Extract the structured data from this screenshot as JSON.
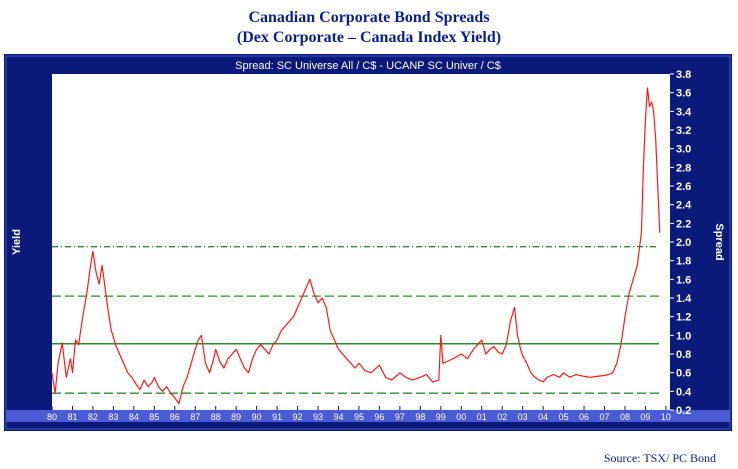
{
  "title_line1": "Canadian Corporate Bond Spreads",
  "title_line2": "(Dex Corporate – Canada Index Yield)",
  "source_note": "Source: TSX/ PC Bond",
  "chart_data": {
    "type": "line",
    "header": "Spread: SC Universe All / C$  -  UCANP SC Univer / C$",
    "ylabel_left": "Yield",
    "ylabel_right": "Spread",
    "x_tick_labels": [
      "80",
      "81",
      "82",
      "83",
      "84",
      "85",
      "86",
      "87",
      "88",
      "89",
      "90",
      "91",
      "92",
      "93",
      "94",
      "95",
      "96",
      "97",
      "98",
      "99",
      "00",
      "01",
      "02",
      "03",
      "04",
      "05",
      "06",
      "07",
      "08",
      "09",
      "10"
    ],
    "xlim": [
      1980,
      2010.2
    ],
    "y_ticks": [
      "3.8",
      "3.6",
      "3.4",
      "3.2",
      "3.0",
      "2.8",
      "2.6",
      "2.4",
      "2.2",
      "2.0",
      "1.8",
      "1.6",
      "1.4",
      "1.2",
      "1.0",
      "0.8",
      "0.6",
      "0.4",
      "0.2"
    ],
    "ylim": [
      0.2,
      3.8
    ],
    "reference_lines": [
      {
        "value": 1.95,
        "style": "dash-dot",
        "color": "#2e8b2e"
      },
      {
        "value": 1.42,
        "style": "dashed",
        "color": "#2e8b2e"
      },
      {
        "value": 0.91,
        "style": "solid",
        "color": "#2e8b2e"
      },
      {
        "value": 0.38,
        "style": "dashed",
        "color": "#2e8b2e"
      }
    ],
    "series": [
      {
        "color": "#ff1a1a",
        "x": [
          1980.0,
          1980.15,
          1980.3,
          1980.5,
          1980.7,
          1980.9,
          1981.0,
          1981.15,
          1981.3,
          1981.5,
          1981.7,
          1981.85,
          1982.0,
          1982.15,
          1982.3,
          1982.45,
          1982.6,
          1982.75,
          1982.9,
          1983.0,
          1983.1,
          1983.3,
          1983.5,
          1983.7,
          1983.9,
          1984.1,
          1984.3,
          1984.5,
          1984.7,
          1984.9,
          1985.0,
          1985.2,
          1985.4,
          1985.6,
          1985.8,
          1986.0,
          1986.2,
          1986.4,
          1986.6,
          1986.8,
          1987.0,
          1987.15,
          1987.3,
          1987.5,
          1987.7,
          1987.9,
          1988.0,
          1988.2,
          1988.4,
          1988.6,
          1988.8,
          1989.0,
          1989.2,
          1989.4,
          1989.6,
          1989.8,
          1990.0,
          1990.2,
          1990.4,
          1990.6,
          1990.8,
          1991.0,
          1991.2,
          1991.4,
          1991.6,
          1991.8,
          1992.0,
          1992.2,
          1992.4,
          1992.6,
          1992.8,
          1993.0,
          1993.2,
          1993.4,
          1993.6,
          1993.8,
          1994.0,
          1994.2,
          1994.4,
          1994.6,
          1994.8,
          1995.0,
          1995.3,
          1995.6,
          1996.0,
          1996.3,
          1996.6,
          1997.0,
          1997.3,
          1997.6,
          1998.0,
          1998.3,
          1998.6,
          1998.9,
          1999.0,
          1999.1,
          1999.3,
          1999.6,
          2000.0,
          2000.3,
          2000.6,
          2001.0,
          2001.2,
          2001.4,
          2001.6,
          2001.8,
          2002.0,
          2002.2,
          2002.4,
          2002.6,
          2002.75,
          2002.9,
          2003.0,
          2003.2,
          2003.4,
          2003.6,
          2003.8,
          2004.0,
          2004.2,
          2004.5,
          2004.8,
          2005.0,
          2005.3,
          2005.6,
          2006.0,
          2006.3,
          2006.6,
          2007.0,
          2007.2,
          2007.4,
          2007.6,
          2007.8,
          2008.0,
          2008.2,
          2008.4,
          2008.6,
          2008.8,
          2008.9,
          2009.0,
          2009.05,
          2009.1,
          2009.2,
          2009.3,
          2009.4,
          2009.5,
          2009.6,
          2009.7
        ],
        "values": [
          0.6,
          0.38,
          0.7,
          0.92,
          0.55,
          0.75,
          0.6,
          0.95,
          0.9,
          1.2,
          1.45,
          1.7,
          1.9,
          1.68,
          1.55,
          1.75,
          1.5,
          1.25,
          1.05,
          0.98,
          0.9,
          0.8,
          0.7,
          0.6,
          0.55,
          0.48,
          0.42,
          0.52,
          0.45,
          0.5,
          0.55,
          0.45,
          0.4,
          0.45,
          0.38,
          0.33,
          0.27,
          0.45,
          0.55,
          0.7,
          0.85,
          0.95,
          1.0,
          0.7,
          0.6,
          0.75,
          0.85,
          0.72,
          0.65,
          0.75,
          0.8,
          0.85,
          0.75,
          0.65,
          0.6,
          0.75,
          0.85,
          0.9,
          0.85,
          0.8,
          0.9,
          0.95,
          1.05,
          1.1,
          1.15,
          1.2,
          1.3,
          1.4,
          1.5,
          1.6,
          1.45,
          1.35,
          1.4,
          1.3,
          1.05,
          0.95,
          0.85,
          0.8,
          0.75,
          0.7,
          0.65,
          0.7,
          0.62,
          0.6,
          0.68,
          0.55,
          0.52,
          0.6,
          0.55,
          0.52,
          0.55,
          0.58,
          0.5,
          0.52,
          1.0,
          0.7,
          0.72,
          0.75,
          0.8,
          0.75,
          0.85,
          0.95,
          0.8,
          0.85,
          0.88,
          0.82,
          0.8,
          0.9,
          1.15,
          1.3,
          1.0,
          0.85,
          0.78,
          0.7,
          0.6,
          0.55,
          0.52,
          0.5,
          0.55,
          0.58,
          0.55,
          0.6,
          0.55,
          0.58,
          0.56,
          0.55,
          0.56,
          0.57,
          0.58,
          0.6,
          0.7,
          0.9,
          1.2,
          1.45,
          1.6,
          1.75,
          2.1,
          2.8,
          3.3,
          3.5,
          3.65,
          3.45,
          3.5,
          3.4,
          3.1,
          2.6,
          2.1
        ]
      }
    ]
  }
}
